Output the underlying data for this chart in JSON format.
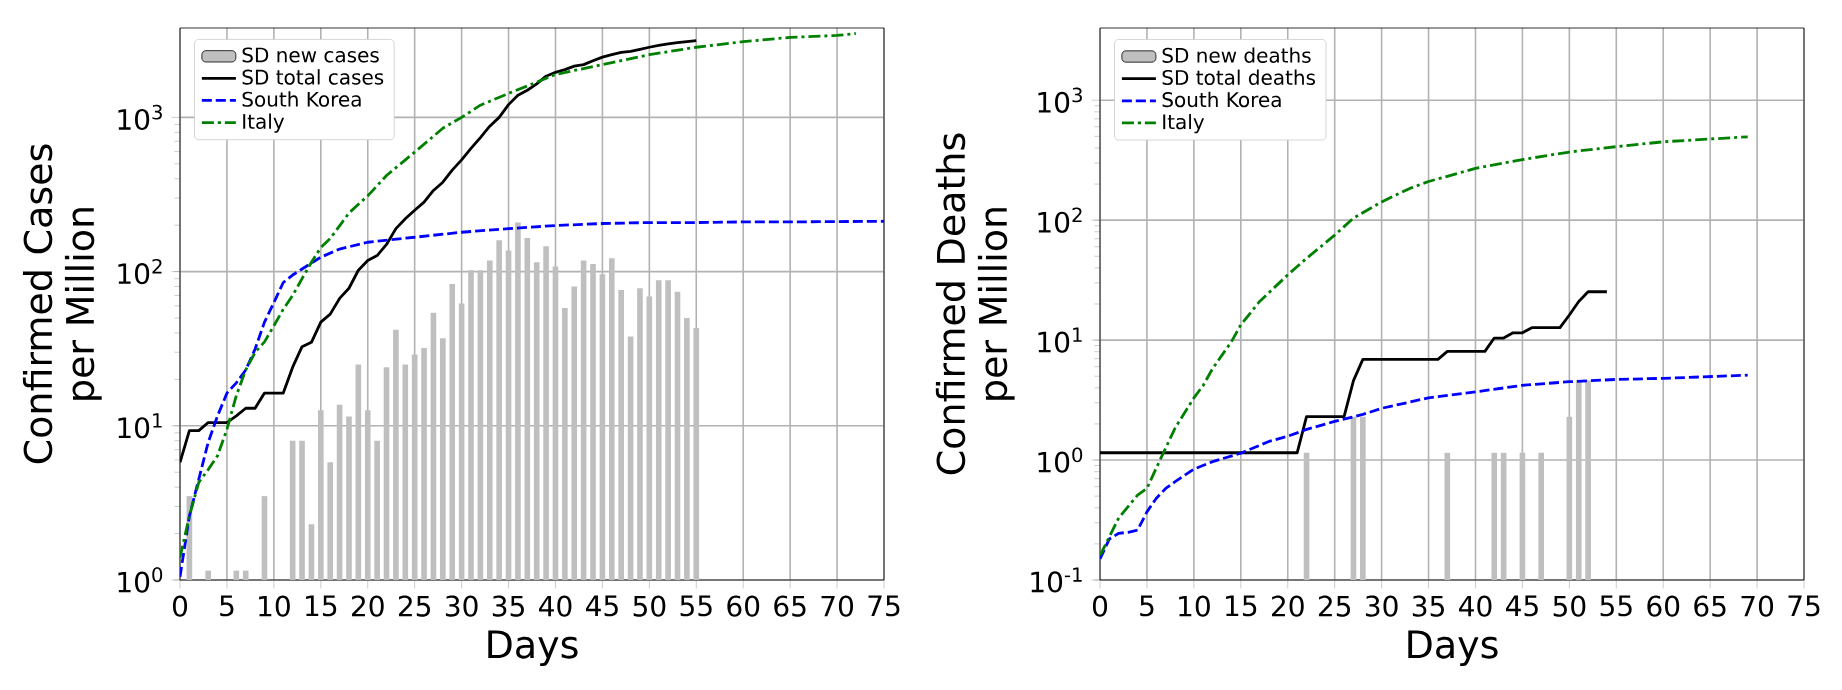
{
  "chart_data": [
    {
      "type": "line",
      "xlabel": "Days",
      "ylabel": "Confirmed Cases per Million",
      "log": "y",
      "grid": true,
      "legend": "top left",
      "xlim": [
        0,
        75
      ],
      "xticks": [
        0,
        5,
        10,
        15,
        20,
        25,
        30,
        35,
        40,
        45,
        50,
        55,
        60,
        65,
        70,
        75
      ],
      "ylim": [
        1,
        3800
      ],
      "yticks": [
        {
          "value": 1,
          "label": "10$^{0}$"
        },
        {
          "value": 10,
          "label": "10$^{1}$"
        },
        {
          "value": 100,
          "label": "10$^{2}$"
        },
        {
          "value": 1000,
          "label": "10$^{3}$"
        }
      ],
      "series": [
        {
          "name": "SD new cases",
          "type": "bar",
          "color": "#bfbfbf",
          "x": [
            1,
            3,
            6,
            7,
            9,
            12,
            13,
            14,
            15,
            16,
            17,
            18,
            19,
            20,
            21,
            22,
            23,
            24,
            25,
            26,
            27,
            28,
            29,
            30,
            31,
            32,
            33,
            34,
            35,
            36,
            37,
            38,
            39,
            40,
            41,
            42,
            43,
            44,
            45,
            46,
            47,
            48,
            49,
            50,
            51,
            52,
            53,
            54,
            55
          ],
          "values": [
            3.5,
            1.15,
            1.15,
            1.15,
            3.5,
            8,
            8,
            2.3,
            12.6,
            5.8,
            13.7,
            11.5,
            25,
            12.6,
            8,
            24,
            42,
            25,
            29,
            32,
            54,
            37,
            83,
            62,
            102,
            102,
            118,
            160,
            137,
            208,
            165,
            115,
            146,
            108,
            58,
            80,
            118,
            112,
            96,
            122,
            76,
            38,
            78,
            69,
            88,
            88,
            74,
            50,
            43
          ]
        },
        {
          "name": "SD total cases",
          "color": "#000000",
          "line_style": "solid",
          "x": [
            0,
            1,
            2,
            3,
            4,
            5,
            6,
            7,
            8,
            9,
            10,
            11,
            12,
            13,
            14,
            15,
            16,
            17,
            18,
            19,
            20,
            21,
            22,
            23,
            24,
            25,
            26,
            27,
            28,
            29,
            30,
            31,
            32,
            33,
            34,
            35,
            36,
            37,
            38,
            39,
            40,
            41,
            42,
            43,
            44,
            45,
            46,
            47,
            48,
            49,
            50,
            51,
            52,
            53,
            54,
            55
          ],
          "values": [
            5.8,
            9.3,
            9.3,
            10.5,
            10.5,
            10.5,
            11.6,
            13,
            13,
            16.3,
            16.3,
            16.3,
            24,
            32.6,
            34.8,
            47,
            53,
            67,
            78,
            102,
            118,
            127,
            150,
            190,
            220,
            250,
            282,
            336,
            380,
            455,
            530,
            630,
            740,
            877,
            1000,
            1210,
            1390,
            1500,
            1650,
            1850,
            1960,
            2040,
            2150,
            2200,
            2330,
            2460,
            2550,
            2640,
            2680,
            2760,
            2850,
            2930,
            3000,
            3050,
            3100,
            3150
          ]
        },
        {
          "name": "South Korea",
          "color": "#0000ff",
          "line_style": "dashed",
          "x": [
            0,
            1,
            2,
            3,
            4,
            5,
            6,
            7,
            8,
            9,
            10,
            11,
            12,
            13,
            15,
            17,
            20,
            25,
            30,
            35,
            40,
            45,
            50,
            55,
            60,
            65,
            75
          ],
          "values": [
            1.05,
            2.6,
            4.5,
            7.8,
            11.6,
            16.3,
            19,
            23,
            31.5,
            47,
            63,
            85,
            95,
            104,
            124,
            140,
            155,
            167,
            180,
            190,
            199,
            205,
            208,
            208,
            210,
            210,
            212
          ]
        },
        {
          "name": "Italy",
          "color": "#008000",
          "line_style": "dashdot",
          "x": [
            0,
            1,
            2,
            3,
            4,
            5,
            6,
            7,
            8,
            9,
            10,
            11,
            12,
            13,
            14,
            15,
            16,
            17,
            18,
            20,
            22,
            25,
            28,
            30,
            32,
            35,
            37,
            40,
            45,
            50,
            55,
            60,
            65,
            70,
            72
          ],
          "values": [
            1.4,
            2.6,
            4.3,
            5.2,
            6.4,
            9.5,
            15.7,
            23,
            30,
            35,
            44.5,
            57,
            70,
            90,
            115,
            143,
            164,
            198,
            240,
            310,
            420,
            595,
            850,
            1000,
            1200,
            1430,
            1600,
            1900,
            2200,
            2550,
            2850,
            3100,
            3300,
            3400,
            3500
          ]
        }
      ]
    },
    {
      "type": "line",
      "xlabel": "Days",
      "ylabel": "Confirmed Deaths per Million",
      "log": "y",
      "grid": true,
      "legend": "top left",
      "xlim": [
        0,
        75
      ],
      "xticks": [
        0,
        5,
        10,
        15,
        20,
        25,
        30,
        35,
        40,
        45,
        50,
        55,
        60,
        65,
        70,
        75
      ],
      "ylim": [
        0.1,
        4000
      ],
      "yticks": [
        {
          "value": 0.1,
          "label": "10$^{-1}$"
        },
        {
          "value": 1,
          "label": "10$^{0}$"
        },
        {
          "value": 10,
          "label": "10$^{1}$"
        },
        {
          "value": 100,
          "label": "10$^{2}$"
        },
        {
          "value": 1000,
          "label": "10$^{3}$"
        }
      ],
      "series": [
        {
          "name": "SD new deaths",
          "type": "bar",
          "color": "#bfbfbf",
          "x": [
            22,
            27,
            28,
            37,
            42,
            43,
            45,
            47,
            50,
            51,
            52
          ],
          "values": [
            1.15,
            2.3,
            2.3,
            1.15,
            1.15,
            1.15,
            1.15,
            1.15,
            2.3,
            4.6,
            4.6
          ]
        },
        {
          "name": "SD total deaths",
          "color": "#000000",
          "line_style": "solid",
          "x": [
            0,
            21,
            22,
            26,
            27,
            28,
            36,
            37,
            41,
            42,
            43,
            44,
            45,
            46,
            49,
            50,
            51,
            52,
            54
          ],
          "values": [
            1.15,
            1.15,
            2.3,
            2.3,
            4.6,
            6.9,
            6.9,
            8.05,
            8.05,
            10.4,
            10.4,
            11.5,
            11.5,
            12.7,
            12.7,
            16.2,
            21,
            25.3,
            25.3
          ]
        },
        {
          "name": "South Korea",
          "color": "#0000ff",
          "line_style": "dashed",
          "x": [
            0,
            1,
            2,
            3,
            4,
            5,
            6,
            7,
            8,
            10,
            12,
            15,
            18,
            20,
            22,
            25,
            28,
            30,
            35,
            40,
            45,
            50,
            55,
            60,
            69
          ],
          "values": [
            0.15,
            0.22,
            0.245,
            0.25,
            0.26,
            0.37,
            0.48,
            0.58,
            0.66,
            0.84,
            0.97,
            1.14,
            1.43,
            1.58,
            1.8,
            2.1,
            2.4,
            2.7,
            3.3,
            3.7,
            4.2,
            4.5,
            4.7,
            4.8,
            5.1
          ]
        },
        {
          "name": "Italy",
          "color": "#008000",
          "line_style": "dashdot",
          "x": [
            0,
            2,
            4,
            5,
            6,
            7,
            8,
            10,
            11,
            12,
            14,
            15,
            17,
            20,
            22,
            25,
            27,
            30,
            33,
            35,
            40,
            45,
            50,
            55,
            60,
            65,
            69
          ],
          "values": [
            0.16,
            0.33,
            0.51,
            0.58,
            0.86,
            1.26,
            1.85,
            3.3,
            4.2,
            5.8,
            9.7,
            13.4,
            21,
            35,
            48,
            75,
            104,
            142,
            184,
            210,
            270,
            320,
            370,
            410,
            450,
            475,
            495
          ]
        }
      ]
    }
  ]
}
